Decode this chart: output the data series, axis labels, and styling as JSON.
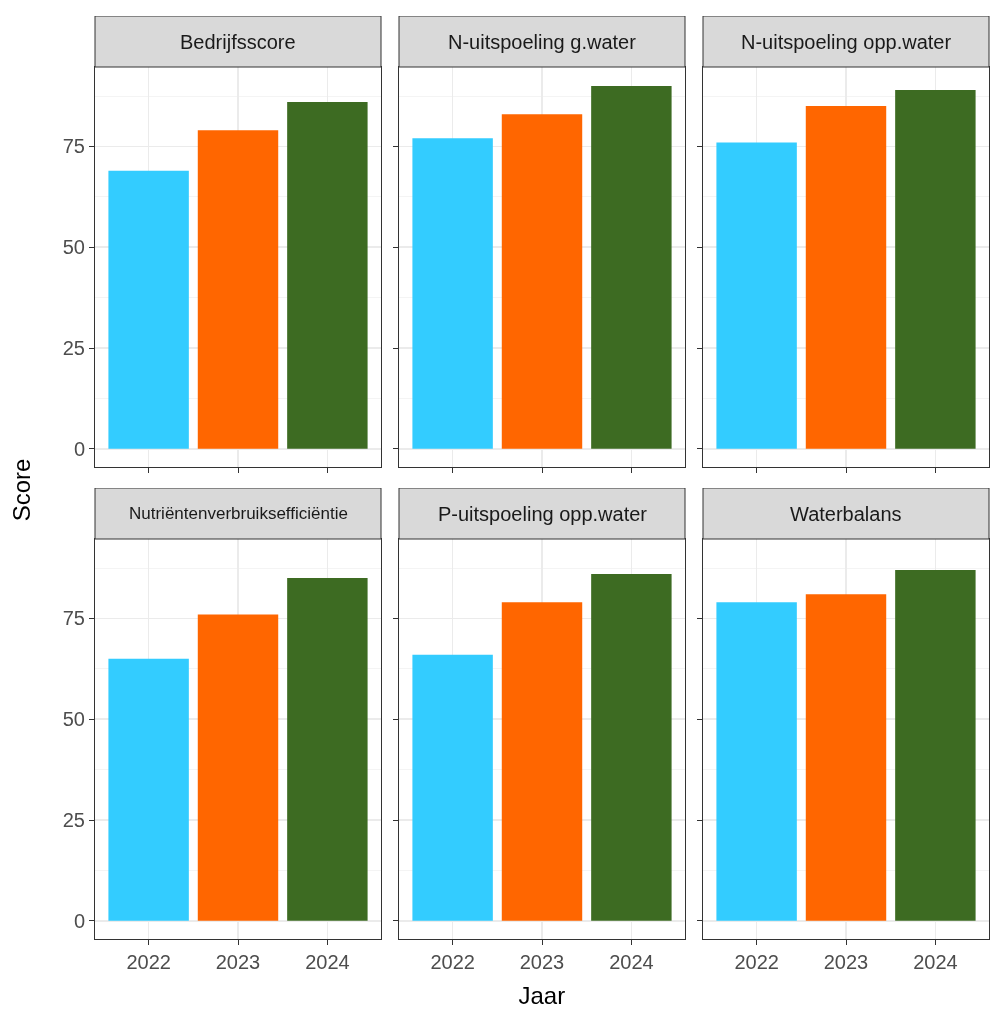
{
  "chart_data": [
    {
      "type": "bar",
      "title": "Bedrijfsscore",
      "ylabel": "Score",
      "categories": [
        "2022",
        "2023",
        "2024"
      ],
      "values": [
        69,
        79,
        86
      ],
      "colors": [
        "#33ccff",
        "#ff6600",
        "#3d6b22"
      ],
      "ylim": [
        -4.5,
        94.7
      ],
      "yticks": [
        0,
        25,
        50,
        75
      ],
      "grid": true,
      "tick_labels": "y"
    },
    {
      "type": "bar",
      "title": "N-uitspoeling g.water",
      "categories": [
        "2022",
        "2023",
        "2024"
      ],
      "values": [
        77,
        83,
        90
      ],
      "colors": [
        "#33ccff",
        "#ff6600",
        "#3d6b22"
      ],
      "ylim": [
        -4.5,
        94.7
      ],
      "yticks": [
        0,
        25,
        50,
        75
      ],
      "grid": true,
      "tick_labels": false
    },
    {
      "type": "bar",
      "title": "N-uitspoeling opp.water",
      "categories": [
        "2022",
        "2023",
        "2024"
      ],
      "values": [
        76,
        85,
        89
      ],
      "colors": [
        "#33ccff",
        "#ff6600",
        "#3d6b22"
      ],
      "ylim": [
        -4.5,
        94.7
      ],
      "yticks": [
        0,
        25,
        50,
        75
      ],
      "grid": true,
      "tick_labels": false
    },
    {
      "type": "bar",
      "title": "Nutriëntenverbruiksefficiëntie",
      "categories": [
        "2022",
        "2023",
        "2024"
      ],
      "values": [
        65,
        76,
        85
      ],
      "colors": [
        "#33ccff",
        "#ff6600",
        "#3d6b22"
      ],
      "ylim": [
        -4.5,
        94.7
      ],
      "yticks": [
        0,
        25,
        50,
        75
      ],
      "grid": true
    },
    {
      "type": "bar",
      "title": "P-uitspoeling opp.water",
      "xlabel": "Jaar",
      "categories": [
        "2022",
        "2023",
        "2024"
      ],
      "values": [
        66,
        79,
        86
      ],
      "colors": [
        "#33ccff",
        "#ff6600",
        "#3d6b22"
      ],
      "ylim": [
        -4.5,
        94.7
      ],
      "yticks": [
        0,
        25,
        50,
        75
      ],
      "grid": true,
      "tick_labels": "x"
    },
    {
      "type": "bar",
      "title": "Waterbalans",
      "categories": [
        "2022",
        "2023",
        "2024"
      ],
      "values": [
        79,
        81,
        87
      ],
      "colors": [
        "#33ccff",
        "#ff6600",
        "#3d6b22"
      ],
      "ylim": [
        -4.5,
        94.7
      ],
      "yticks": [
        0,
        25,
        50,
        75
      ],
      "grid": true,
      "tick_labels": "x"
    }
  ]
}
